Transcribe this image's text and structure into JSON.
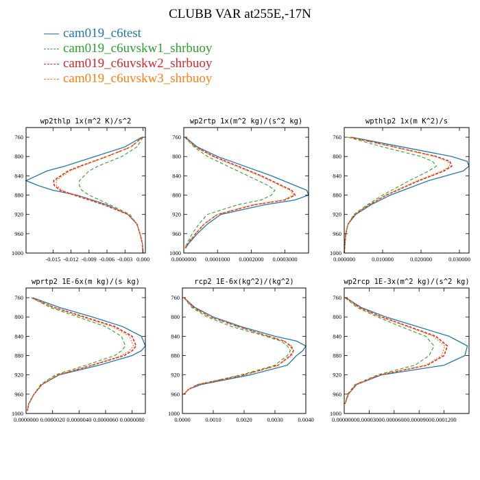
{
  "title": "CLUBB VAR at255E,-17N",
  "legend": [
    {
      "label": "cam019_c6test",
      "color": "#1f77b4",
      "dash": false
    },
    {
      "label": "cam019_c6uvskw1_shrbuoy",
      "color": "#2ca02c",
      "dash": true
    },
    {
      "label": "cam019_c6uvskw2_shrbuoy",
      "color": "#d62728",
      "dash": true
    },
    {
      "label": "cam019_c6uvskw3_shrbuoy",
      "color": "#ff7f0e",
      "dash": true
    }
  ],
  "chart_data": [
    {
      "type": "line",
      "title": "wp2thlp  1x(m^2 K)/s^2",
      "xlim": [
        -0.0195,
        0.0004
      ],
      "ylim": [
        740,
        1000
      ],
      "xticks": [
        -0.015,
        -0.012,
        -0.009,
        -0.006,
        -0.003,
        0.0
      ],
      "xticklabels": [
        "-0.015",
        "-0.012",
        "-0.009",
        "-0.006",
        "-0.003",
        "0.000"
      ],
      "yticks": [
        760,
        800,
        840,
        880,
        920,
        960,
        1000
      ],
      "yticklabels": [
        "760",
        "800",
        "840",
        "880",
        "920",
        "960",
        "1000"
      ],
      "y": [
        760,
        780,
        800,
        820,
        830,
        850,
        860,
        870,
        880,
        900,
        920,
        940,
        960,
        980,
        1000
      ],
      "series": [
        {
          "name": "cam019_c6test",
          "values": [
            -0.0002,
            -0.003,
            -0.008,
            -0.013,
            -0.016,
            -0.0195,
            -0.0175,
            -0.015,
            -0.011,
            -0.006,
            -0.0025,
            -0.001,
            -0.0005,
            -0.0001,
            0.0
          ]
        },
        {
          "name": "cam019_c6uvskw1_shrbuoy",
          "values": [
            0.0,
            -0.001,
            -0.0035,
            -0.0075,
            -0.009,
            -0.0106,
            -0.0106,
            -0.0102,
            -0.009,
            -0.0055,
            -0.0022,
            -0.001,
            -0.0005,
            -0.0001,
            0.0
          ]
        },
        {
          "name": "cam019_c6uvskw2_shrbuoy",
          "values": [
            -0.0001,
            -0.002,
            -0.006,
            -0.0105,
            -0.0125,
            -0.0149,
            -0.0148,
            -0.0138,
            -0.0115,
            -0.0065,
            -0.0025,
            -0.001,
            -0.0005,
            -0.0001,
            0.0
          ]
        },
        {
          "name": "cam019_c6uvskw3_shrbuoy",
          "values": [
            -0.0001,
            -0.002,
            -0.006,
            -0.0102,
            -0.0122,
            -0.0145,
            -0.0144,
            -0.0135,
            -0.0112,
            -0.0063,
            -0.0024,
            -0.001,
            -0.0005,
            -0.0001,
            0.0
          ]
        }
      ]
    },
    {
      "type": "line",
      "title": "wp2rtp  1x(m^2 kg)/(s^2 kg)",
      "xlim": [
        0,
        0.00037
      ],
      "ylim": [
        740,
        1000
      ],
      "xticks": [
        0,
        0.0001,
        0.0002,
        0.0003
      ],
      "xticklabels": [
        "0.0000000",
        "0.0001000",
        "0.0002000",
        "0.0003000"
      ],
      "yticks": [
        760,
        800,
        840,
        880,
        920,
        960,
        1000
      ],
      "yticklabels": [
        "760",
        "800",
        "840",
        "880",
        "920",
        "960",
        "1000"
      ],
      "y": [
        760,
        780,
        800,
        820,
        840,
        860,
        870,
        880,
        890,
        900,
        920,
        940,
        960,
        980,
        990
      ],
      "series": [
        {
          "name": "cam019_c6test",
          "values": [
            5e-06,
            4e-05,
            0.0001,
            0.00018,
            0.00026,
            0.00033,
            0.000365,
            0.00037,
            0.00033,
            0.00024,
            0.00011,
            7e-05,
            4e-05,
            1.5e-05,
            5e-06
          ]
        },
        {
          "name": "cam019_c6uvskw1_shrbuoy",
          "values": [
            3e-06,
            3e-05,
            7e-05,
            0.00013,
            0.00019,
            0.00025,
            0.00027,
            0.00026,
            0.00023,
            0.00016,
            7e-05,
            4.5e-05,
            2.5e-05,
            1e-05,
            3e-06
          ]
        },
        {
          "name": "cam019_c6uvskw2_shrbuoy",
          "values": [
            4e-06,
            3.5e-05,
            9e-05,
            0.00016,
            0.00023,
            0.00029,
            0.00032,
            0.00033,
            0.0003,
            0.00021,
            0.0001,
            6e-05,
            3.5e-05,
            1.2e-05,
            4e-06
          ]
        },
        {
          "name": "cam019_c6uvskw3_shrbuoy",
          "values": [
            4e-06,
            3.4e-05,
            8.5e-05,
            0.000155,
            0.000225,
            0.000285,
            0.000315,
            0.000325,
            0.000295,
            0.000205,
            0.0001,
            6e-05,
            3.4e-05,
            1.2e-05,
            4e-06
          ]
        }
      ]
    },
    {
      "type": "line",
      "title": "wpthlp2  1x(m K^2)/s",
      "xlim": [
        0,
        0.0325
      ],
      "ylim": [
        740,
        1000
      ],
      "xticks": [
        0,
        0.01,
        0.02,
        0.03
      ],
      "xticklabels": [
        "0.000000",
        "0.010000",
        "0.020000",
        "0.030000"
      ],
      "yticks": [
        760,
        800,
        840,
        880,
        920,
        960,
        1000
      ],
      "yticklabels": [
        "760",
        "800",
        "840",
        "880",
        "920",
        "960",
        "1000"
      ],
      "y": [
        760,
        780,
        800,
        810,
        820,
        830,
        850,
        880,
        900,
        920,
        940,
        960,
        980,
        1000
      ],
      "series": [
        {
          "name": "cam019_c6test",
          "values": [
            0.002,
            0.015,
            0.028,
            0.032,
            0.0325,
            0.031,
            0.022,
            0.012,
            0.007,
            0.003,
            0.001,
            0.0004,
            0.0002,
            0.0
          ]
        },
        {
          "name": "cam019_c6uvskw1_shrbuoy",
          "values": [
            0.001,
            0.01,
            0.02,
            0.023,
            0.024,
            0.022,
            0.017,
            0.01,
            0.006,
            0.0025,
            0.001,
            0.0004,
            0.0002,
            0.0
          ]
        },
        {
          "name": "cam019_c6uvskw2_shrbuoy",
          "values": [
            0.0015,
            0.013,
            0.024,
            0.0275,
            0.028,
            0.026,
            0.0195,
            0.011,
            0.0065,
            0.0028,
            0.001,
            0.0004,
            0.0002,
            0.0
          ]
        },
        {
          "name": "cam019_c6uvskw3_shrbuoy",
          "values": [
            0.0015,
            0.0128,
            0.0235,
            0.027,
            0.0275,
            0.0255,
            0.019,
            0.0108,
            0.0064,
            0.0027,
            0.001,
            0.0004,
            0.0002,
            0.0
          ]
        }
      ]
    },
    {
      "type": "line",
      "title": "wprtp2  1E-6x(m kg)/(s kg)",
      "xlim": [
        0,
        9e-06
      ],
      "ylim": [
        740,
        1000
      ],
      "xticks": [
        0,
        2e-06,
        4e-06,
        6e-06,
        8e-06
      ],
      "xticklabels": [
        "0.0000000",
        "0.0000020",
        "0.0000040",
        "0.0000060",
        "0.0000080"
      ],
      "yticks": [
        760,
        800,
        840,
        880,
        920,
        960,
        1000
      ],
      "yticklabels": [
        "760",
        "800",
        "840",
        "880",
        "920",
        "960",
        "1000"
      ],
      "y": [
        760,
        780,
        800,
        820,
        840,
        860,
        870,
        880,
        900,
        920,
        940,
        960,
        980,
        995
      ],
      "series": [
        {
          "name": "cam019_c6test",
          "values": [
            5e-07,
            2.5e-06,
            5e-06,
            7.3e-06,
            8.7e-06,
            9e-06,
            8.7e-06,
            8e-06,
            5.5e-06,
            2.5e-06,
            1.2e-06,
            6e-07,
            2e-07,
            1e-07
          ]
        },
        {
          "name": "cam019_c6uvskw1_shrbuoy",
          "values": [
            4e-07,
            1.8e-06,
            3.9e-06,
            6e-06,
            7.2e-06,
            7.5e-06,
            7.2e-06,
            6.7e-06,
            4.5e-06,
            2.2e-06,
            1.1e-06,
            6e-07,
            2e-07,
            1e-07
          ]
        },
        {
          "name": "cam019_c6uvskw2_shrbuoy",
          "values": [
            4e-07,
            2.1e-06,
            4.4e-06,
            6.7e-06,
            8e-06,
            8.3e-06,
            8e-06,
            7.4e-06,
            5e-06,
            2.4e-06,
            1.2e-06,
            6e-07,
            2e-07,
            1e-07
          ]
        },
        {
          "name": "cam019_c6uvskw3_shrbuoy",
          "values": [
            4e-07,
            2e-06,
            4.2e-06,
            6.5e-06,
            7.8e-06,
            8.1e-06,
            7.8e-06,
            7.2e-06,
            4.9e-06,
            2.4e-06,
            1.2e-06,
            6e-07,
            2e-07,
            1e-07
          ]
        }
      ]
    },
    {
      "type": "line",
      "title": "rcp2  1E-6x(kg^2)/(kg^2)",
      "xlim": [
        0,
        0.004
      ],
      "ylim": [
        740,
        1000
      ],
      "xticks": [
        0,
        0.001,
        0.002,
        0.003,
        0.004
      ],
      "xticklabels": [
        "0.0000",
        "0.0010",
        "0.0020",
        "0.0030",
        "0.0040"
      ],
      "yticks": [
        760,
        800,
        840,
        880,
        920,
        960,
        1000
      ],
      "yticklabels": [
        "760",
        "800",
        "840",
        "880",
        "920",
        "960",
        "1000"
      ],
      "y": [
        760,
        780,
        800,
        820,
        840,
        850,
        860,
        870,
        880,
        900,
        920,
        940,
        950,
        960
      ],
      "series": [
        {
          "name": "cam019_c6test",
          "values": [
            5e-05,
            0.0004,
            0.001,
            0.0019,
            0.003,
            0.0037,
            0.004,
            0.0039,
            0.0037,
            0.0034,
            0.0022,
            0.0006,
            0.0002,
            5e-05
          ]
        },
        {
          "name": "cam019_c6uvskw1_shrbuoy",
          "values": [
            5e-05,
            0.0003,
            0.0008,
            0.0016,
            0.0027,
            0.0032,
            0.0034,
            0.0035,
            0.0034,
            0.003,
            0.0019,
            0.0005,
            0.0002,
            5e-05
          ]
        },
        {
          "name": "cam019_c6uvskw2_shrbuoy",
          "values": [
            5e-05,
            0.00035,
            0.0009,
            0.0018,
            0.0028,
            0.0033,
            0.0035,
            0.0036,
            0.0035,
            0.0031,
            0.002,
            0.0005,
            0.0002,
            5e-05
          ]
        },
        {
          "name": "cam019_c6uvskw3_shrbuoy",
          "values": [
            5e-05,
            0.00035,
            0.0009,
            0.0018,
            0.0028,
            0.0033,
            0.00355,
            0.0036,
            0.00355,
            0.0031,
            0.002,
            0.0005,
            0.0002,
            5e-05
          ]
        }
      ]
    },
    {
      "type": "line",
      "title": "wp2rcp  1E-3x(m^2 kg)/(s^2 kg)",
      "xlim": [
        0,
        0.00015
      ],
      "ylim": [
        740,
        1000
      ],
      "xticks": [
        0,
        3e-05,
        6e-05,
        9e-05,
        0.00012
      ],
      "xticklabels": [
        "0.0000000",
        "0.0000300",
        "0.0000600",
        "0.0000900",
        "0.0001200"
      ],
      "yticks": [
        760,
        800,
        840,
        880,
        920,
        960,
        1000
      ],
      "yticklabels": [
        "760",
        "800",
        "840",
        "880",
        "920",
        "960",
        "1000"
      ],
      "y": [
        760,
        780,
        800,
        820,
        840,
        860,
        880,
        900,
        920,
        940,
        960,
        980
      ],
      "series": [
        {
          "name": "cam019_c6test",
          "values": [
            2e-06,
            2e-05,
            5e-05,
            8.8e-05,
            0.000126,
            0.000148,
            0.000145,
            0.00012,
            4.5e-05,
            1.5e-05,
            5e-06,
            1e-06
          ]
        },
        {
          "name": "cam019_c6uvskw1_shrbuoy",
          "values": [
            1e-06,
            1.5e-05,
            4e-05,
            6.8e-05,
            9.8e-05,
            0.000108,
            0.000102,
            8.5e-05,
            4e-05,
            1.3e-05,
            4e-06,
            1e-06
          ]
        },
        {
          "name": "cam019_c6uvskw2_shrbuoy",
          "values": [
            2e-06,
            1.8e-05,
            4.5e-05,
            7.8e-05,
            0.00011,
            0.000124,
            0.00012,
            0.0001,
            4.3e-05,
            1.4e-05,
            5e-06,
            1e-06
          ]
        },
        {
          "name": "cam019_c6uvskw3_shrbuoy",
          "values": [
            2e-06,
            1.7e-05,
            4.3e-05,
            7.6e-05,
            0.000107,
            0.000121,
            0.000117,
            9.8e-05,
            4.2e-05,
            1.4e-05,
            5e-06,
            1e-06
          ]
        }
      ]
    }
  ]
}
